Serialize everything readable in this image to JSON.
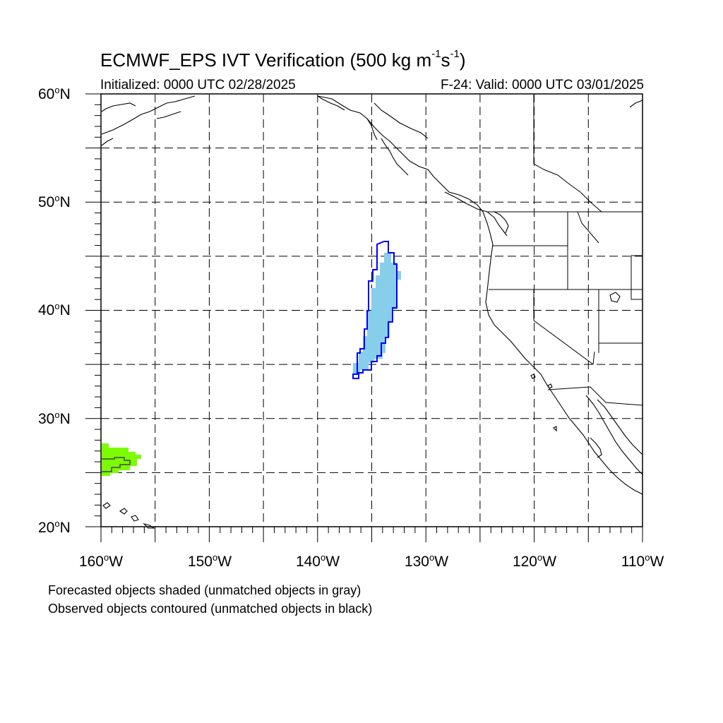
{
  "title": {
    "main": "ECMWF_EPS IVT Verification (500 kg m",
    "sup1": "-1",
    "mid": "s",
    "sup2": "-1",
    "close": ")"
  },
  "subtitle": {
    "left": "Initialized: 0000 UTC 02/28/2025",
    "right": "F-24: Valid: 0000 UTC 03/01/2025"
  },
  "axes": {
    "lat_labels": [
      "60",
      "50",
      "40",
      "30",
      "20"
    ],
    "lat_suffix": "N",
    "lon_labels": [
      "160",
      "150",
      "140",
      "130",
      "120",
      "110"
    ],
    "lon_suffix": "W",
    "lon_range": [
      -160,
      -110
    ],
    "lat_range": [
      20,
      60
    ]
  },
  "legend": {
    "line1": "Forecasted objects shaded (unmatched objects in gray)",
    "line2": "Observed objects contoured (unmatched objects in black)"
  },
  "colors": {
    "matched_forecast_fill": "#87ceeb",
    "matched_observed_contour": "#0000ff",
    "other_forecast_fill": "#7cfc00",
    "coastline": "#000000",
    "grid": "#000000"
  },
  "objects": [
    {
      "name": "matched-forecast-object",
      "kind": "shaded",
      "lon_center": -134,
      "lat_center": 40
    },
    {
      "name": "matched-observed-object",
      "kind": "contour",
      "lon_center": -134.5,
      "lat_center": 40
    },
    {
      "name": "western-forecast-object",
      "kind": "shaded",
      "lon_center": -158.5,
      "lat_center": 26
    },
    {
      "name": "western-observed-object",
      "kind": "contour",
      "lon_center": -158.5,
      "lat_center": 26
    }
  ]
}
